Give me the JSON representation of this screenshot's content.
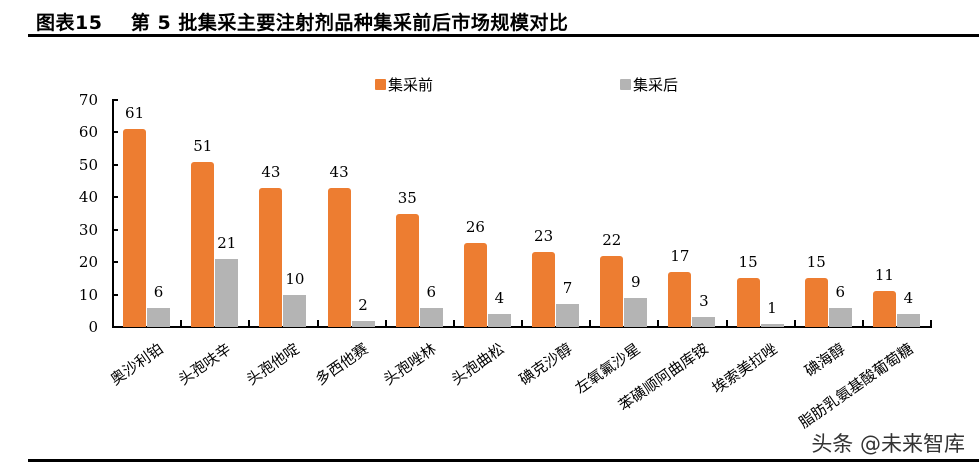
{
  "header": {
    "figure_number": "图表15",
    "title": "第 5 批集采主要注射剂品种集采前后市场规模对比"
  },
  "legend": [
    {
      "label": "集采前",
      "color": "#ED7D31"
    },
    {
      "label": "集采后",
      "color": "#B4B4B4"
    }
  ],
  "watermark": "头条 @未来智库",
  "chart_data": {
    "type": "bar",
    "title": "第 5 批集采主要注射剂品种集采前后市场规模对比",
    "xlabel": "",
    "ylabel": "",
    "ylim": [
      0,
      70
    ],
    "yticks": [
      0,
      10,
      20,
      30,
      40,
      50,
      60,
      70
    ],
    "grid": false,
    "legend_position": "top",
    "categories": [
      "奥沙利铂",
      "头孢呋辛",
      "头孢他啶",
      "多西他赛",
      "头孢唑林",
      "头孢曲松",
      "碘克沙醇",
      "左氧氟沙星",
      "苯磺顺阿曲库铵",
      "埃索美拉唑",
      "碘海醇",
      "脂肪乳氨基酸葡萄糖"
    ],
    "series": [
      {
        "name": "集采前",
        "color": "#ED7D31",
        "values": [
          61,
          51,
          43,
          43,
          35,
          26,
          23,
          22,
          17,
          15,
          15,
          11
        ]
      },
      {
        "name": "集采后",
        "color": "#B4B4B4",
        "values": [
          6,
          21,
          10,
          2,
          6,
          4,
          7,
          9,
          3,
          1,
          6,
          4
        ]
      }
    ]
  }
}
